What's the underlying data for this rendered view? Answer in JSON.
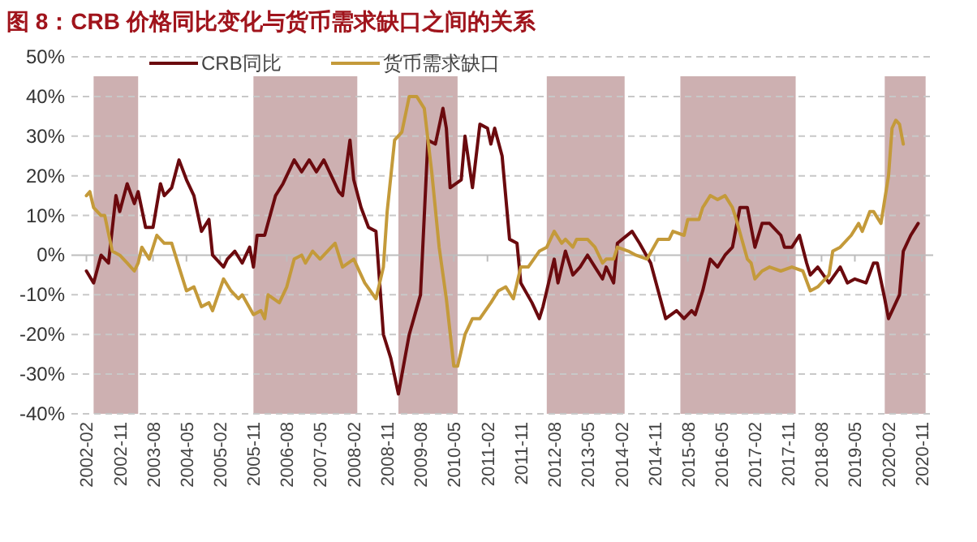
{
  "chart_data": {
    "type": "line",
    "title": "图 8：CRB 价格同比变化与货币需求缺口之间的关系",
    "xlim": [
      "2001-10",
      "2021-02"
    ],
    "xticks": [
      "2002-02",
      "2002-11",
      "2003-08",
      "2004-05",
      "2005-02",
      "2005-11",
      "2006-08",
      "2007-05",
      "2008-02",
      "2008-11",
      "2009-08",
      "2010-05",
      "2011-02",
      "2011-11",
      "2012-08",
      "2013-05",
      "2014-02",
      "2014-11",
      "2015-08",
      "2016-05",
      "2017-02",
      "2017-11",
      "2018-08",
      "2019-05",
      "2020-02",
      "2020-11"
    ],
    "ylim": [
      -40,
      50
    ],
    "yticks": [
      {
        "value": -40,
        "label": "-40%"
      },
      {
        "value": -30,
        "label": "-30%"
      },
      {
        "value": -20,
        "label": "-20%"
      },
      {
        "value": -10,
        "label": "-10%"
      },
      {
        "value": 0,
        "label": "0%"
      },
      {
        "value": 10,
        "label": "10%"
      },
      {
        "value": 20,
        "label": "20%"
      },
      {
        "value": 30,
        "label": "30%"
      },
      {
        "value": 40,
        "label": "40%"
      },
      {
        "value": 50,
        "label": "50%"
      }
    ],
    "grid": "y",
    "legend": "top",
    "line_style": "solid",
    "marker": "none",
    "bands": [
      {
        "axis": "x",
        "from": "2002-04",
        "to": "2003-04",
        "color": "#cdb0b1"
      },
      {
        "axis": "x",
        "from": "2005-11",
        "to": "2008-03",
        "color": "#cdb0b1"
      },
      {
        "axis": "x",
        "from": "2009-02",
        "to": "2010-06",
        "color": "#cdb0b1"
      },
      {
        "axis": "x",
        "from": "2012-06",
        "to": "2014-03",
        "color": "#cdb0b1"
      },
      {
        "axis": "x",
        "from": "2015-06",
        "to": "2018-01",
        "color": "#cdb0b1"
      },
      {
        "axis": "x",
        "from": "2020-01",
        "to": "2020-12",
        "color": "#cdb0b1"
      }
    ],
    "series": [
      {
        "name": "CRB同比",
        "color": "#6b0a0e",
        "x": [
          "2002-02",
          "2002-04",
          "2002-06",
          "2002-08",
          "2002-10",
          "2002-11",
          "2003-01",
          "2003-03",
          "2003-04",
          "2003-06",
          "2003-08",
          "2003-10",
          "2003-11",
          "2004-01",
          "2004-03",
          "2004-05",
          "2004-07",
          "2004-09",
          "2004-11",
          "2004-12",
          "2005-03",
          "2005-04",
          "2005-06",
          "2005-08",
          "2005-10",
          "2005-11",
          "2005-12",
          "2006-02",
          "2006-05",
          "2006-07",
          "2006-10",
          "2006-12",
          "2007-02",
          "2007-04",
          "2007-06",
          "2007-08",
          "2007-10",
          "2007-11",
          "2008-01",
          "2008-02",
          "2008-04",
          "2008-06",
          "2008-08",
          "2008-10",
          "2008-12",
          "2009-02",
          "2009-04",
          "2009-05",
          "2009-08",
          "2009-10",
          "2009-12",
          "2010-02",
          "2010-03",
          "2010-04",
          "2010-07",
          "2010-08",
          "2010-10",
          "2010-12",
          "2011-02",
          "2011-03",
          "2011-04",
          "2011-06",
          "2011-08",
          "2011-10",
          "2011-11",
          "2012-02",
          "2012-04",
          "2012-05",
          "2012-08",
          "2012-09",
          "2012-11",
          "2013-01",
          "2013-03",
          "2013-05",
          "2013-07",
          "2013-09",
          "2013-10",
          "2013-12",
          "2014-01",
          "2014-05",
          "2014-07",
          "2014-10",
          "2015-02",
          "2015-05",
          "2015-07",
          "2015-09",
          "2015-10",
          "2015-12",
          "2016-02",
          "2016-04",
          "2016-06",
          "2016-08",
          "2016-10",
          "2016-12",
          "2017-02",
          "2017-04",
          "2017-06",
          "2017-09",
          "2017-10",
          "2017-12",
          "2018-02",
          "2018-04",
          "2018-05",
          "2018-07",
          "2018-10",
          "2019-01",
          "2019-03",
          "2019-05",
          "2019-08",
          "2019-10",
          "2019-11",
          "2020-01",
          "2020-02",
          "2020-04",
          "2020-05",
          "2020-06",
          "2020-08",
          "2020-10"
        ],
        "values": [
          -4,
          -7,
          0,
          -2,
          15,
          11,
          18,
          13,
          16,
          7,
          7,
          18,
          15,
          17,
          24,
          19,
          15,
          6,
          9,
          0,
          -3,
          -1,
          1,
          -2,
          2,
          -3,
          5,
          5,
          15,
          18,
          24,
          21,
          24,
          21,
          24,
          20,
          16,
          15,
          29,
          19,
          12,
          7,
          6,
          -20,
          -26,
          -35,
          -25,
          -20,
          -10,
          29,
          28,
          37,
          32,
          17,
          19,
          30,
          17,
          33,
          32,
          28,
          32,
          25,
          4,
          3,
          -7,
          -12,
          -16,
          -13,
          -1,
          -7,
          1,
          -5,
          -3,
          0,
          -3,
          -6,
          -3,
          -7,
          3,
          6,
          3,
          -2,
          -16,
          -14,
          -16,
          -14,
          -15,
          -9,
          -1,
          -3,
          0,
          2,
          12,
          12,
          2,
          8,
          8,
          5,
          2,
          2,
          5,
          -2,
          -5,
          -3,
          -7,
          -3,
          -7,
          -6,
          -7,
          -2,
          -2,
          -11,
          -16,
          -12,
          -10,
          1,
          5,
          8
        ]
      },
      {
        "name": "货币需求缺口",
        "color": "#c49a3a",
        "x": [
          "2002-02",
          "2002-03",
          "2002-04",
          "2002-06",
          "2002-07",
          "2002-09",
          "2002-11",
          "2003-01",
          "2003-03",
          "2003-04",
          "2003-05",
          "2003-07",
          "2003-09",
          "2003-11",
          "2004-01",
          "2004-03",
          "2004-05",
          "2004-07",
          "2004-09",
          "2004-11",
          "2004-12",
          "2005-03",
          "2005-05",
          "2005-07",
          "2005-08",
          "2005-11",
          "2006-01",
          "2006-02",
          "2006-03",
          "2006-06",
          "2006-08",
          "2006-10",
          "2006-12",
          "2007-01",
          "2007-03",
          "2007-05",
          "2007-08",
          "2007-09",
          "2007-11",
          "2008-02",
          "2008-05",
          "2008-08",
          "2008-10",
          "2008-11",
          "2009-01",
          "2009-03",
          "2009-05",
          "2009-07",
          "2009-09",
          "2009-11",
          "2010-01",
          "2010-03",
          "2010-05",
          "2010-06",
          "2010-08",
          "2010-10",
          "2010-12",
          "2011-03",
          "2011-05",
          "2011-07",
          "2011-09",
          "2011-11",
          "2012-01",
          "2012-04",
          "2012-06",
          "2012-08",
          "2012-10",
          "2012-11",
          "2013-01",
          "2013-02",
          "2013-05",
          "2013-07",
          "2013-09",
          "2013-10",
          "2013-12",
          "2014-01",
          "2014-04",
          "2014-06",
          "2014-09",
          "2014-12",
          "2015-03",
          "2015-04",
          "2015-07",
          "2015-08",
          "2015-11",
          "2015-12",
          "2016-02",
          "2016-04",
          "2016-06",
          "2016-08",
          "2016-09",
          "2016-12",
          "2017-01",
          "2017-02",
          "2017-04",
          "2017-06",
          "2017-09",
          "2017-12",
          "2018-03",
          "2018-05",
          "2018-07",
          "2018-10",
          "2018-11",
          "2019-01",
          "2019-04",
          "2019-06",
          "2019-07",
          "2019-09",
          "2019-10",
          "2019-12",
          "2020-02",
          "2020-03",
          "2020-04",
          "2020-05",
          "2020-06"
        ],
        "values": [
          15,
          16,
          12,
          10,
          10,
          1,
          0,
          -2,
          -4,
          -2,
          2,
          -1,
          5,
          3,
          3,
          -3,
          -9,
          -8,
          -13,
          -12,
          -14,
          -6,
          -9,
          -11,
          -10,
          -15,
          -14,
          -16,
          -10,
          -12,
          -8,
          -1,
          0,
          -2,
          1,
          -1,
          2,
          3,
          -3,
          -1,
          -7,
          -11,
          -3,
          11,
          29,
          31,
          40,
          40,
          37,
          21,
          2,
          -11,
          -28,
          -28,
          -20,
          -16,
          -16,
          -12,
          -9,
          -8,
          -11,
          -3,
          -3,
          1,
          2,
          6,
          3,
          4,
          2,
          4,
          4,
          2,
          -2,
          -1,
          -1,
          2,
          1,
          0,
          -1,
          4,
          4,
          6,
          5,
          9,
          9,
          12,
          15,
          14,
          15,
          12,
          9,
          -1,
          -2,
          -6,
          -4,
          -3,
          -4,
          -3,
          -4,
          -9,
          -8,
          -5,
          1,
          2,
          5,
          8,
          6,
          11,
          11,
          8,
          20,
          32,
          34,
          33,
          28
        ]
      }
    ]
  }
}
